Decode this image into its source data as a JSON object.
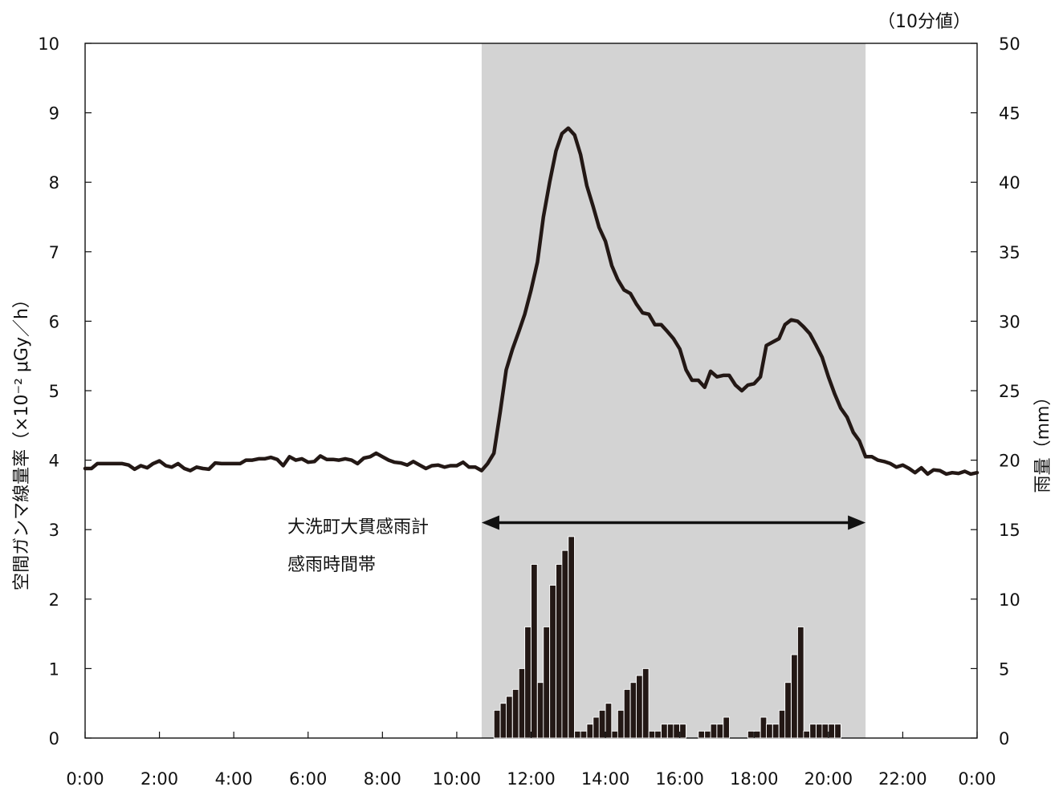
{
  "chart_data": {
    "type": "line",
    "unit_note": "（10分値）",
    "x_tick_labels": [
      "0:00",
      "2:00",
      "4:00",
      "6:00",
      "8:00",
      "10:00",
      "12:00",
      "14:00",
      "16:00",
      "18:00",
      "20:00",
      "22:00",
      "0:00"
    ],
    "x_range_hours": [
      0,
      24
    ],
    "y_left": {
      "label": "空間ガンマ線量率（×10⁻² μGy／h）",
      "range": [
        0,
        10
      ],
      "ticks": [
        "0",
        "1",
        "2",
        "3",
        "4",
        "5",
        "6",
        "7",
        "8",
        "9",
        "10"
      ]
    },
    "y_right": {
      "label": "雨量（mm）",
      "range": [
        0,
        50
      ],
      "ticks": [
        "0",
        "5",
        "10",
        "15",
        "20",
        "25",
        "30",
        "35",
        "40",
        "45",
        "50"
      ]
    },
    "rain_period": {
      "label_line1": "大洗町大貫感雨計",
      "label_line2": "感雨時間帯",
      "start_hour": 10.67,
      "end_hour": 21.0
    },
    "series": [
      {
        "type": "line",
        "axis": "left",
        "points": [
          [
            0.0,
            3.88
          ],
          [
            0.17,
            3.88
          ],
          [
            0.33,
            3.95
          ],
          [
            0.5,
            3.95
          ],
          [
            0.67,
            3.95
          ],
          [
            0.83,
            3.95
          ],
          [
            1.0,
            3.95
          ],
          [
            1.17,
            3.93
          ],
          [
            1.33,
            3.87
          ],
          [
            1.5,
            3.92
          ],
          [
            1.67,
            3.89
          ],
          [
            1.83,
            3.95
          ],
          [
            2.0,
            3.99
          ],
          [
            2.17,
            3.92
          ],
          [
            2.33,
            3.9
          ],
          [
            2.5,
            3.95
          ],
          [
            2.67,
            3.88
          ],
          [
            2.83,
            3.85
          ],
          [
            3.0,
            3.9
          ],
          [
            3.17,
            3.88
          ],
          [
            3.33,
            3.87
          ],
          [
            3.5,
            3.96
          ],
          [
            3.67,
            3.95
          ],
          [
            3.83,
            3.95
          ],
          [
            4.0,
            3.95
          ],
          [
            4.17,
            3.95
          ],
          [
            4.33,
            4.0
          ],
          [
            4.5,
            4.0
          ],
          [
            4.67,
            4.02
          ],
          [
            4.83,
            4.02
          ],
          [
            5.0,
            4.04
          ],
          [
            5.17,
            4.01
          ],
          [
            5.33,
            3.92
          ],
          [
            5.5,
            4.05
          ],
          [
            5.67,
            4.0
          ],
          [
            5.83,
            4.02
          ],
          [
            6.0,
            3.97
          ],
          [
            6.17,
            3.98
          ],
          [
            6.33,
            4.06
          ],
          [
            6.5,
            4.01
          ],
          [
            6.67,
            4.01
          ],
          [
            6.83,
            4.0
          ],
          [
            7.0,
            4.02
          ],
          [
            7.17,
            4.0
          ],
          [
            7.33,
            3.95
          ],
          [
            7.5,
            4.03
          ],
          [
            7.67,
            4.05
          ],
          [
            7.83,
            4.1
          ],
          [
            8.0,
            4.05
          ],
          [
            8.17,
            4.0
          ],
          [
            8.33,
            3.97
          ],
          [
            8.5,
            3.96
          ],
          [
            8.67,
            3.93
          ],
          [
            8.83,
            3.98
          ],
          [
            9.0,
            3.93
          ],
          [
            9.17,
            3.88
          ],
          [
            9.33,
            3.92
          ],
          [
            9.5,
            3.93
          ],
          [
            9.67,
            3.9
          ],
          [
            9.83,
            3.92
          ],
          [
            10.0,
            3.92
          ],
          [
            10.17,
            3.97
          ],
          [
            10.33,
            3.9
          ],
          [
            10.5,
            3.9
          ],
          [
            10.67,
            3.85
          ],
          [
            10.83,
            3.95
          ],
          [
            11.0,
            4.1
          ],
          [
            11.17,
            4.7
          ],
          [
            11.33,
            5.3
          ],
          [
            11.5,
            5.6
          ],
          [
            11.67,
            5.85
          ],
          [
            11.83,
            6.1
          ],
          [
            12.0,
            6.45
          ],
          [
            12.17,
            6.85
          ],
          [
            12.33,
            7.5
          ],
          [
            12.5,
            8.0
          ],
          [
            12.67,
            8.45
          ],
          [
            12.83,
            8.7
          ],
          [
            13.0,
            8.78
          ],
          [
            13.17,
            8.68
          ],
          [
            13.33,
            8.4
          ],
          [
            13.5,
            7.95
          ],
          [
            13.67,
            7.65
          ],
          [
            13.83,
            7.35
          ],
          [
            14.0,
            7.15
          ],
          [
            14.17,
            6.8
          ],
          [
            14.33,
            6.6
          ],
          [
            14.5,
            6.45
          ],
          [
            14.67,
            6.4
          ],
          [
            14.83,
            6.25
          ],
          [
            15.0,
            6.12
          ],
          [
            15.17,
            6.1
          ],
          [
            15.33,
            5.95
          ],
          [
            15.5,
            5.95
          ],
          [
            15.67,
            5.85
          ],
          [
            15.83,
            5.75
          ],
          [
            16.0,
            5.6
          ],
          [
            16.17,
            5.3
          ],
          [
            16.33,
            5.15
          ],
          [
            16.5,
            5.15
          ],
          [
            16.67,
            5.05
          ],
          [
            16.83,
            5.28
          ],
          [
            17.0,
            5.2
          ],
          [
            17.17,
            5.22
          ],
          [
            17.33,
            5.22
          ],
          [
            17.5,
            5.08
          ],
          [
            17.67,
            5.0
          ],
          [
            17.83,
            5.08
          ],
          [
            18.0,
            5.1
          ],
          [
            18.17,
            5.2
          ],
          [
            18.33,
            5.65
          ],
          [
            18.5,
            5.7
          ],
          [
            18.67,
            5.75
          ],
          [
            18.83,
            5.95
          ],
          [
            19.0,
            6.02
          ],
          [
            19.17,
            6.0
          ],
          [
            19.33,
            5.92
          ],
          [
            19.5,
            5.82
          ],
          [
            19.67,
            5.65
          ],
          [
            19.83,
            5.48
          ],
          [
            20.0,
            5.2
          ],
          [
            20.17,
            4.95
          ],
          [
            20.33,
            4.75
          ],
          [
            20.5,
            4.62
          ],
          [
            20.67,
            4.4
          ],
          [
            20.83,
            4.28
          ],
          [
            21.0,
            4.05
          ],
          [
            21.17,
            4.05
          ],
          [
            21.33,
            4.0
          ],
          [
            21.5,
            3.98
          ],
          [
            21.67,
            3.95
          ],
          [
            21.83,
            3.9
          ],
          [
            22.0,
            3.93
          ],
          [
            22.17,
            3.88
          ],
          [
            22.33,
            3.82
          ],
          [
            22.5,
            3.89
          ],
          [
            22.67,
            3.8
          ],
          [
            22.83,
            3.86
          ],
          [
            23.0,
            3.85
          ],
          [
            23.17,
            3.8
          ],
          [
            23.33,
            3.82
          ],
          [
            23.5,
            3.81
          ],
          [
            23.67,
            3.84
          ],
          [
            23.83,
            3.8
          ],
          [
            24.0,
            3.82
          ]
        ]
      },
      {
        "type": "bar",
        "axis": "right",
        "bar_width_hours": 0.1667,
        "bars": [
          [
            11.0,
            2
          ],
          [
            11.17,
            2.5
          ],
          [
            11.33,
            3
          ],
          [
            11.5,
            3.5
          ],
          [
            11.67,
            5
          ],
          [
            11.83,
            8
          ],
          [
            12.0,
            12.5
          ],
          [
            12.17,
            4
          ],
          [
            12.33,
            8
          ],
          [
            12.5,
            11
          ],
          [
            12.67,
            12.5
          ],
          [
            12.83,
            13.5
          ],
          [
            13.0,
            14.5
          ],
          [
            13.17,
            0.5
          ],
          [
            13.33,
            0.5
          ],
          [
            13.5,
            1
          ],
          [
            13.67,
            1.5
          ],
          [
            13.83,
            2
          ],
          [
            14.0,
            2.5
          ],
          [
            14.17,
            0.5
          ],
          [
            14.33,
            2
          ],
          [
            14.5,
            3.5
          ],
          [
            14.67,
            4
          ],
          [
            14.83,
            4.5
          ],
          [
            15.0,
            5
          ],
          [
            15.17,
            0.5
          ],
          [
            15.33,
            0.5
          ],
          [
            15.5,
            1
          ],
          [
            15.67,
            1
          ],
          [
            15.83,
            1
          ],
          [
            16.0,
            1
          ],
          [
            16.17,
            0
          ],
          [
            16.33,
            0
          ],
          [
            16.5,
            0.5
          ],
          [
            16.67,
            0.5
          ],
          [
            16.83,
            1
          ],
          [
            17.0,
            1
          ],
          [
            17.17,
            1.5
          ],
          [
            17.33,
            0
          ],
          [
            17.5,
            0
          ],
          [
            17.67,
            0
          ],
          [
            17.83,
            0.5
          ],
          [
            18.0,
            0.5
          ],
          [
            18.17,
            1.5
          ],
          [
            18.33,
            1
          ],
          [
            18.5,
            1
          ],
          [
            18.67,
            2
          ],
          [
            18.83,
            4
          ],
          [
            19.0,
            6
          ],
          [
            19.17,
            8
          ],
          [
            19.33,
            0.5
          ],
          [
            19.5,
            1
          ],
          [
            19.67,
            1
          ],
          [
            19.83,
            1
          ],
          [
            20.0,
            1
          ],
          [
            20.17,
            1
          ]
        ]
      }
    ],
    "colors": {
      "line": "#231815",
      "bar_fill": "#231815",
      "bar_edge": "#ffffff",
      "rain_shade": "#d3d3d3",
      "axis": "#111111"
    }
  }
}
